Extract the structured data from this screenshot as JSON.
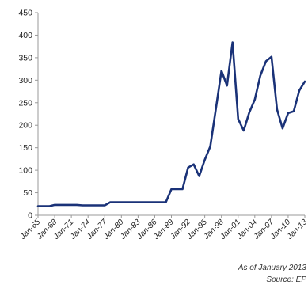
{
  "chart_data": {
    "type": "line",
    "title": "",
    "xlabel": "",
    "ylabel": "",
    "ylim": [
      0,
      450
    ],
    "yticks": [
      0,
      50,
      100,
      150,
      200,
      250,
      300,
      350,
      400,
      450
    ],
    "grid": false,
    "x_tick_labels": [
      "Jan-65",
      "Jan-68",
      "Jan-71",
      "Jan-74",
      "Jan-77",
      "Jan-80",
      "Jan-83",
      "Jan-86",
      "Jan-89",
      "Jan-92",
      "Jan-95",
      "Jan-98",
      "Jan-01",
      "Jan-04",
      "Jan-07",
      "Jan-10",
      "Jan-13"
    ],
    "series": [
      {
        "color": "#1a3278",
        "x": [
          1965,
          1966,
          1967,
          1968,
          1969,
          1970,
          1971,
          1972,
          1973,
          1974,
          1975,
          1976,
          1977,
          1978,
          1979,
          1980,
          1981,
          1982,
          1983,
          1984,
          1985,
          1986,
          1987,
          1988,
          1989,
          1990,
          1991,
          1992,
          1993,
          1994,
          1995,
          1996,
          1997,
          1998,
          1999,
          2000,
          2001,
          2002,
          2003,
          2004,
          2005,
          2006,
          2007,
          2008,
          2009,
          2010,
          2011,
          2012,
          2013
        ],
        "values": [
          20,
          20,
          20,
          23,
          23,
          23,
          23,
          23,
          22,
          22,
          22,
          22,
          22,
          29,
          29,
          29,
          29,
          29,
          29,
          29,
          29,
          29,
          29,
          29,
          58,
          58,
          58,
          106,
          113,
          87,
          123,
          153,
          237,
          321,
          288,
          384,
          214,
          188,
          228,
          257,
          310,
          342,
          352,
          235,
          193,
          227,
          231,
          277,
          297
        ]
      }
    ]
  },
  "annotations": {
    "as_of": "As of January 2013",
    "source": "Source: EP"
  }
}
